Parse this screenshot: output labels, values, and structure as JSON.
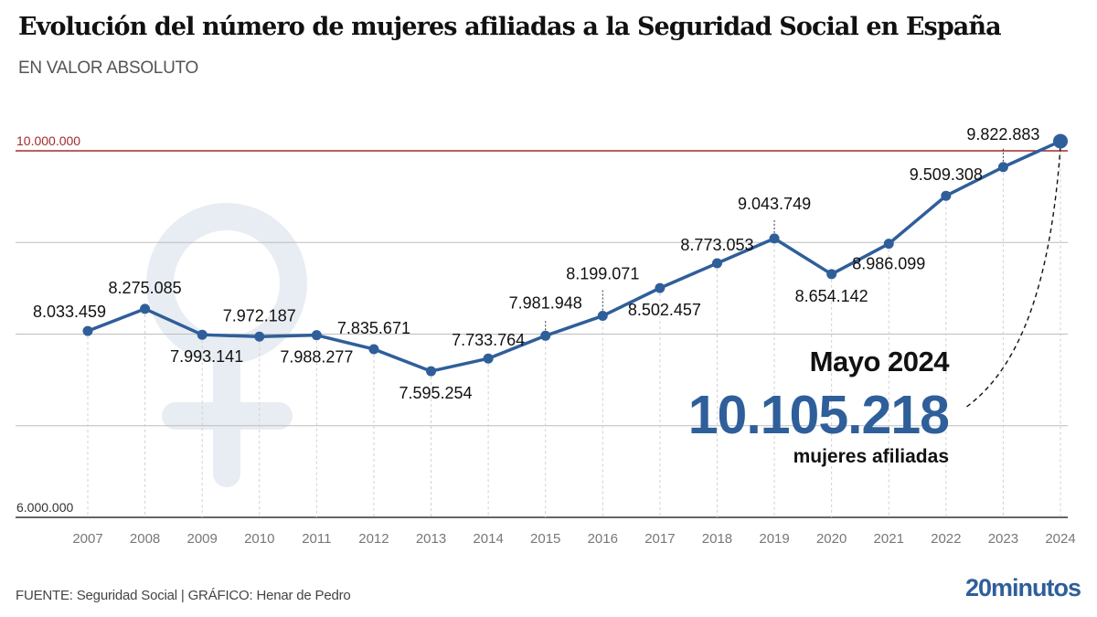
{
  "header": {
    "title": "Evolución del número de mujeres afiliadas a la Seguridad Social en España",
    "subtitle": "EN VALOR ABSOLUTO"
  },
  "callout": {
    "date": "Mayo 2024",
    "value": "10.105.218",
    "label": "mujeres afiliadas"
  },
  "footer": {
    "source": "FUENTE: Seguridad Social  |  GRÁFICO: Henar de Pedro",
    "logo": "20minutos"
  },
  "colors": {
    "line": "#2f5f9a",
    "reference_line": "#a32a2a",
    "watermark": "#e8edf3",
    "grid": "#bdbdbd",
    "axis_label": "#777777"
  },
  "icons": {
    "watermark": "female-symbol-icon"
  },
  "chart_data": {
    "type": "line",
    "title": "Evolución del número de mujeres afiliadas a la Seguridad Social en España",
    "subtitle": "EN VALOR ABSOLUTO",
    "xlabel": "",
    "ylabel": "",
    "categories": [
      "2007",
      "2008",
      "2009",
      "2010",
      "2011",
      "2012",
      "2013",
      "2014",
      "2015",
      "2016",
      "2017",
      "2018",
      "2019",
      "2020",
      "2021",
      "2022",
      "2023",
      "2024"
    ],
    "series": [
      {
        "name": "Mujeres afiliadas",
        "values": [
          8033459,
          8275085,
          7993141,
          7972187,
          7988277,
          7835671,
          7595254,
          7733764,
          7981948,
          8199071,
          8502457,
          8773053,
          9043749,
          8654142,
          8986099,
          9509308,
          9822883,
          10105218
        ],
        "labels": [
          "8.033.459",
          "8.275.085",
          "7.993.141",
          "7.972.187",
          "7.988.277",
          "7.835.671",
          "7.595.254",
          "7.733.764",
          "7.981.948",
          "8.199.071",
          "8.502.457",
          "8.773.053",
          "9.043.749",
          "8.654.142",
          "8.986.099",
          "9.509.308",
          "9.822.883",
          ""
        ],
        "label_position": [
          "above",
          "above",
          "below",
          "above",
          "below",
          "above",
          "below",
          "above",
          "above",
          "above",
          "below",
          "above",
          "above",
          "below",
          "below",
          "above",
          "above",
          "none"
        ]
      }
    ],
    "ylim": [
      6000000,
      10000000
    ],
    "yticks": [
      6000000,
      7000000,
      8000000,
      9000000,
      10000000
    ],
    "ytick_labels": {
      "6000000": "6.000.000",
      "10000000": "10.000.000"
    },
    "reference_line": {
      "value": 10000000,
      "label": "10.000.000"
    },
    "grid": true,
    "legend": "none",
    "annotation": {
      "x": "2024",
      "text": "Mayo 2024 — 10.105.218 mujeres afiliadas"
    }
  }
}
